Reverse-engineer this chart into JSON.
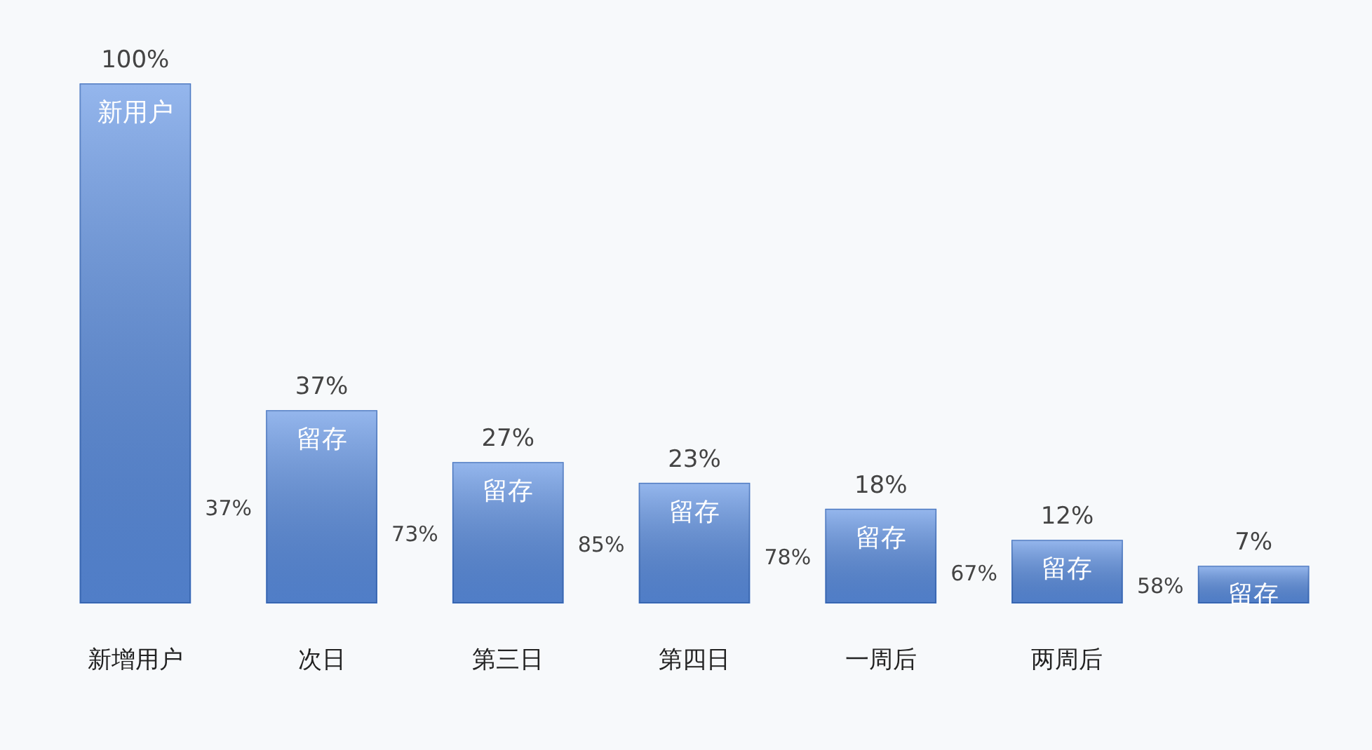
{
  "chart_data": {
    "type": "bar",
    "categories": [
      "新增用户",
      "次日",
      "第三日",
      "第四日",
      "一周后",
      "两周后",
      null
    ],
    "values": [
      100,
      37,
      27,
      23,
      18,
      12,
      7
    ],
    "value_labels": [
      "100%",
      "37%",
      "27%",
      "23%",
      "18%",
      "12%",
      "7%"
    ],
    "color": "#5b8fe3",
    "annotations": [
      "新用户",
      "留存",
      "留存",
      "留存",
      "留存",
      "留存",
      "留存",
      "37%",
      "73%",
      "85%",
      "78%",
      "67%",
      "58%"
    ]
  }
}
